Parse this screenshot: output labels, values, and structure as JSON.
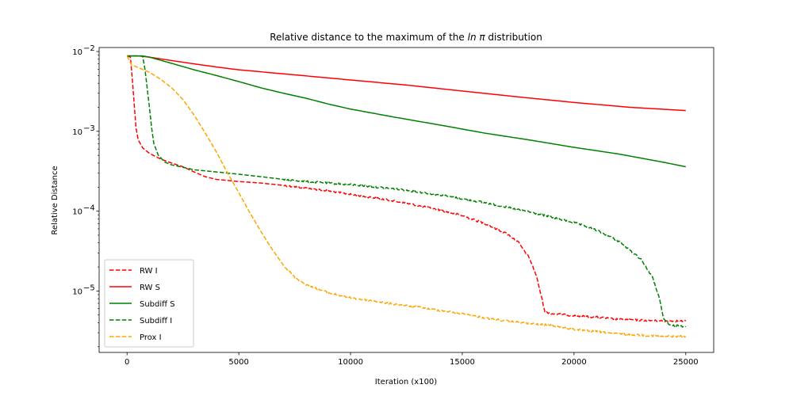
{
  "chart_data": {
    "type": "line",
    "title": "Relative distance to the maximum of the ",
    "title_math": "ln π",
    "title_suffix": " distribution",
    "xlabel": "Iteration (x100)",
    "ylabel": "Relative Distance",
    "xlim": [
      -1250,
      26250
    ],
    "ylim_log10": [
      -5.77,
      -1.95
    ],
    "yscale": "log",
    "grid": false,
    "legend_placement": "lower-left",
    "x_ticks": [
      {
        "value": 0,
        "label": "0"
      },
      {
        "value": 5000,
        "label": "5000"
      },
      {
        "value": 10000,
        "label": "10000"
      },
      {
        "value": 15000,
        "label": "15000"
      },
      {
        "value": 20000,
        "label": "20000"
      },
      {
        "value": 25000,
        "label": "25000"
      }
    ],
    "y_ticks": [
      {
        "exp": -2,
        "label_base": "10",
        "label_exp": "−2"
      },
      {
        "exp": -3,
        "label_base": "10",
        "label_exp": "−3"
      },
      {
        "exp": -4,
        "label_base": "10",
        "label_exp": "−4"
      },
      {
        "exp": -5,
        "label_base": "10",
        "label_exp": "−5"
      }
    ],
    "series": [
      {
        "name": "RW I",
        "color": "#ff0000",
        "dash": "dashed",
        "noisy": true,
        "points": [
          [
            0,
            0.0088
          ],
          [
            150,
            0.0085
          ],
          [
            250,
            0.004
          ],
          [
            330,
            0.002
          ],
          [
            400,
            0.0011
          ],
          [
            500,
            0.00078
          ],
          [
            700,
            0.00062
          ],
          [
            1000,
            0.00053
          ],
          [
            1500,
            0.00045
          ],
          [
            2000,
            0.0004
          ],
          [
            2500,
            0.00036
          ],
          [
            3000,
            0.00031
          ],
          [
            3500,
            0.00027
          ],
          [
            4000,
            0.00025
          ],
          [
            5000,
            0.000235
          ],
          [
            6000,
            0.000225
          ],
          [
            7000,
            0.00021
          ],
          [
            8000,
            0.000195
          ],
          [
            9000,
            0.00018
          ],
          [
            10000,
            0.000162
          ],
          [
            11000,
            0.000148
          ],
          [
            12000,
            0.000133
          ],
          [
            13000,
            0.000118
          ],
          [
            14000,
            0.000103
          ],
          [
            15000,
            8.8e-05
          ],
          [
            16000,
            7e-05
          ],
          [
            17000,
            5.2e-05
          ],
          [
            17500,
            4.1e-05
          ],
          [
            18000,
            2.6e-05
          ],
          [
            18300,
            1.6e-05
          ],
          [
            18500,
            9.5e-06
          ],
          [
            18700,
            5.5e-06
          ],
          [
            19000,
            5.2e-06
          ],
          [
            20000,
            4.9e-06
          ],
          [
            21000,
            4.7e-06
          ],
          [
            22000,
            4.4e-06
          ],
          [
            23000,
            4.3e-06
          ],
          [
            24000,
            4.2e-06
          ],
          [
            25000,
            4.2e-06
          ]
        ]
      },
      {
        "name": "RW S",
        "color": "#ff0000",
        "dash": "solid",
        "noisy": false,
        "points": [
          [
            0,
            0.0088
          ],
          [
            500,
            0.0088
          ],
          [
            1000,
            0.0085
          ],
          [
            2000,
            0.0077
          ],
          [
            3000,
            0.007
          ],
          [
            4000,
            0.0064
          ],
          [
            5000,
            0.0059
          ],
          [
            7500,
            0.0051
          ],
          [
            10000,
            0.0044
          ],
          [
            12500,
            0.0038
          ],
          [
            15000,
            0.0032
          ],
          [
            17500,
            0.0027
          ],
          [
            20000,
            0.0023
          ],
          [
            22500,
            0.002
          ],
          [
            25000,
            0.00182
          ]
        ]
      },
      {
        "name": "Subdiff S",
        "color": "#008000",
        "dash": "solid",
        "noisy": false,
        "points": [
          [
            0,
            0.0088
          ],
          [
            500,
            0.0088
          ],
          [
            700,
            0.0088
          ],
          [
            1000,
            0.0085
          ],
          [
            2000,
            0.0071
          ],
          [
            3000,
            0.0059
          ],
          [
            4000,
            0.005
          ],
          [
            5000,
            0.0042
          ],
          [
            6000,
            0.0035
          ],
          [
            7000,
            0.003
          ],
          [
            8000,
            0.0026
          ],
          [
            9000,
            0.0022
          ],
          [
            10000,
            0.0019
          ],
          [
            12000,
            0.0015
          ],
          [
            14000,
            0.0012
          ],
          [
            16000,
            0.00095
          ],
          [
            18000,
            0.00078
          ],
          [
            20000,
            0.00063
          ],
          [
            22000,
            0.00052
          ],
          [
            24000,
            0.00041
          ],
          [
            25000,
            0.00036
          ]
        ]
      },
      {
        "name": "Subdiff I",
        "color": "#008000",
        "dash": "dashed",
        "noisy": true,
        "points": [
          [
            0,
            0.0088
          ],
          [
            600,
            0.0088
          ],
          [
            700,
            0.0087
          ],
          [
            800,
            0.006
          ],
          [
            900,
            0.0035
          ],
          [
            1000,
            0.002
          ],
          [
            1100,
            0.0011
          ],
          [
            1200,
            0.0007
          ],
          [
            1400,
            0.0005
          ],
          [
            1700,
            0.00041
          ],
          [
            2000,
            0.00038
          ],
          [
            3000,
            0.00033
          ],
          [
            4000,
            0.00031
          ],
          [
            5000,
            0.00029
          ],
          [
            6000,
            0.00027
          ],
          [
            7000,
            0.00025
          ],
          [
            8000,
            0.000235
          ],
          [
            10000,
            0.000215
          ],
          [
            12000,
            0.00019
          ],
          [
            14000,
            0.00016
          ],
          [
            16000,
            0.000128
          ],
          [
            18000,
            9.8e-05
          ],
          [
            20000,
            7.2e-05
          ],
          [
            21000,
            5.8e-05
          ],
          [
            22000,
            4.2e-05
          ],
          [
            23000,
            2.5e-05
          ],
          [
            23500,
            1.5e-05
          ],
          [
            23800,
            8.5e-06
          ],
          [
            24000,
            4.5e-06
          ],
          [
            24300,
            3.7e-06
          ],
          [
            25000,
            3.6e-06
          ]
        ]
      },
      {
        "name": "Prox I",
        "color": "#ffa500",
        "dash": "dashed",
        "noisy": true,
        "points": [
          [
            0,
            0.0088
          ],
          [
            200,
            0.0068
          ],
          [
            500,
            0.0063
          ],
          [
            1000,
            0.0055
          ],
          [
            1500,
            0.0045
          ],
          [
            2000,
            0.0035
          ],
          [
            2500,
            0.0025
          ],
          [
            3000,
            0.0016
          ],
          [
            3500,
            0.00095
          ],
          [
            4000,
            0.00055
          ],
          [
            4500,
            0.0003
          ],
          [
            5000,
            0.00017
          ],
          [
            5500,
            9.5e-05
          ],
          [
            6000,
            5.5e-05
          ],
          [
            6500,
            3.3e-05
          ],
          [
            7000,
            2.1e-05
          ],
          [
            7500,
            1.5e-05
          ],
          [
            8000,
            1.2e-05
          ],
          [
            9000,
            9.5e-06
          ],
          [
            10000,
            8.2e-06
          ],
          [
            11000,
            7.5e-06
          ],
          [
            12000,
            6.8e-06
          ],
          [
            13000,
            6.3e-06
          ],
          [
            14000,
            5.7e-06
          ],
          [
            15000,
            5.2e-06
          ],
          [
            16000,
            4.6e-06
          ],
          [
            17000,
            4.2e-06
          ],
          [
            18000,
            3.9e-06
          ],
          [
            19000,
            3.7e-06
          ],
          [
            20000,
            3.3e-06
          ],
          [
            21000,
            3.1e-06
          ],
          [
            22000,
            2.9e-06
          ],
          [
            23000,
            2.8e-06
          ],
          [
            24000,
            2.7e-06
          ],
          [
            25000,
            2.7e-06
          ]
        ]
      }
    ],
    "legend_order": [
      "RW I",
      "RW S",
      "Subdiff S",
      "Subdiff I",
      "Prox I"
    ]
  }
}
